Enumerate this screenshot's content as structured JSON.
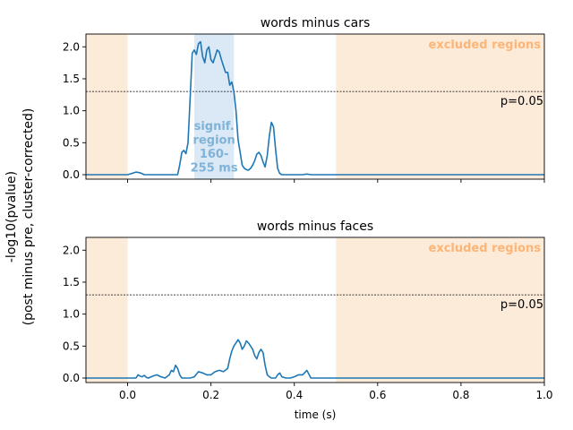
{
  "figure": {
    "ylabel_line1": "-log10(pvalue)",
    "ylabel_line2": "(post minus pre, cluster-corrected)",
    "xlabel": "time (s)"
  },
  "chart_data": [
    {
      "type": "line",
      "title": "words minus cars",
      "xlim": [
        -0.1,
        1.0
      ],
      "ylim": [
        -0.07,
        2.2
      ],
      "yticks": [
        "0.0",
        "0.5",
        "1.0",
        "1.5",
        "2.0"
      ],
      "ytick_values": [
        0.0,
        0.5,
        1.0,
        1.5,
        2.0
      ],
      "xticks": [
        0.0,
        0.2,
        0.4,
        0.6,
        0.8,
        1.0
      ],
      "show_xtick_labels": false,
      "threshold": {
        "value": 1.301,
        "label": "p=0.05"
      },
      "excluded_regions": [
        [
          -0.1,
          0.0
        ],
        [
          0.5,
          1.0
        ]
      ],
      "excluded_label": "excluded regions",
      "significant_region": {
        "range": [
          0.16,
          0.255
        ],
        "label_lines": [
          "signif.",
          "region",
          "160-",
          "255 ms"
        ]
      },
      "colors": {
        "line": "#1f77b4",
        "excluded": "#fdebd9",
        "excluded_text": "#fdb577",
        "signif": "#dbe9f6",
        "signif_text": "#7fb3d8"
      },
      "series": [
        {
          "x": [
            -0.1,
            0.0,
            0.01,
            0.02,
            0.03,
            0.04,
            0.05,
            0.1,
            0.12,
            0.125,
            0.13,
            0.135,
            0.14,
            0.145,
            0.15,
            0.155,
            0.16,
            0.165,
            0.17,
            0.175,
            0.18,
            0.185,
            0.19,
            0.195,
            0.2,
            0.205,
            0.21,
            0.215,
            0.22,
            0.225,
            0.23,
            0.235,
            0.24,
            0.245,
            0.25,
            0.255,
            0.26,
            0.265,
            0.27,
            0.275,
            0.28,
            0.285,
            0.29,
            0.295,
            0.3,
            0.305,
            0.31,
            0.315,
            0.32,
            0.325,
            0.33,
            0.335,
            0.34,
            0.345,
            0.35,
            0.355,
            0.36,
            0.365,
            0.37,
            0.38,
            0.4,
            0.42,
            0.43,
            0.44,
            0.5,
            1.0
          ],
          "y": [
            0.0,
            0.0,
            0.02,
            0.04,
            0.03,
            0.0,
            0.0,
            0.0,
            0.0,
            0.15,
            0.35,
            0.38,
            0.33,
            0.5,
            1.2,
            1.9,
            1.95,
            1.88,
            2.05,
            2.08,
            1.85,
            1.75,
            1.95,
            2.0,
            1.8,
            1.75,
            1.85,
            1.95,
            1.92,
            1.8,
            1.7,
            1.6,
            1.6,
            1.4,
            1.45,
            1.3,
            1.0,
            0.55,
            0.35,
            0.15,
            0.1,
            0.08,
            0.07,
            0.1,
            0.15,
            0.22,
            0.32,
            0.35,
            0.3,
            0.2,
            0.12,
            0.3,
            0.6,
            0.82,
            0.75,
            0.4,
            0.1,
            0.02,
            0.0,
            0.0,
            0.0,
            0.0,
            0.01,
            0.0,
            0.0,
            0.0
          ]
        }
      ]
    },
    {
      "type": "line",
      "title": "words minus faces",
      "xlim": [
        -0.1,
        1.0
      ],
      "ylim": [
        -0.07,
        2.2
      ],
      "yticks": [
        "0.0",
        "0.5",
        "1.0",
        "1.5",
        "2.0"
      ],
      "ytick_values": [
        0.0,
        0.5,
        1.0,
        1.5,
        2.0
      ],
      "xticks": [
        0.0,
        0.2,
        0.4,
        0.6,
        0.8,
        1.0
      ],
      "xtick_labels": [
        "0.0",
        "0.2",
        "0.4",
        "0.6",
        "0.8",
        "1.0"
      ],
      "show_xtick_labels": true,
      "threshold": {
        "value": 1.301,
        "label": "p=0.05"
      },
      "excluded_regions": [
        [
          -0.1,
          0.0
        ],
        [
          0.5,
          1.0
        ]
      ],
      "excluded_label": "excluded regions",
      "colors": {
        "line": "#1f77b4",
        "excluded": "#fdebd9",
        "excluded_text": "#fdb577"
      },
      "series": [
        {
          "x": [
            -0.1,
            0.0,
            0.02,
            0.025,
            0.03,
            0.035,
            0.04,
            0.045,
            0.05,
            0.06,
            0.07,
            0.08,
            0.09,
            0.1,
            0.105,
            0.11,
            0.115,
            0.12,
            0.125,
            0.13,
            0.14,
            0.15,
            0.16,
            0.17,
            0.18,
            0.19,
            0.2,
            0.21,
            0.22,
            0.23,
            0.24,
            0.245,
            0.25,
            0.255,
            0.26,
            0.265,
            0.27,
            0.275,
            0.28,
            0.285,
            0.29,
            0.295,
            0.3,
            0.305,
            0.31,
            0.315,
            0.32,
            0.325,
            0.33,
            0.335,
            0.34,
            0.345,
            0.35,
            0.355,
            0.36,
            0.365,
            0.37,
            0.38,
            0.39,
            0.4,
            0.41,
            0.42,
            0.43,
            0.44,
            0.5,
            1.0
          ],
          "y": [
            0.0,
            0.0,
            0.0,
            0.05,
            0.03,
            0.02,
            0.04,
            0.01,
            0.0,
            0.03,
            0.05,
            0.02,
            0.0,
            0.05,
            0.12,
            0.1,
            0.2,
            0.15,
            0.05,
            0.0,
            0.0,
            0.0,
            0.02,
            0.1,
            0.08,
            0.05,
            0.05,
            0.1,
            0.12,
            0.1,
            0.15,
            0.3,
            0.42,
            0.5,
            0.55,
            0.6,
            0.55,
            0.45,
            0.5,
            0.58,
            0.55,
            0.5,
            0.45,
            0.35,
            0.3,
            0.4,
            0.45,
            0.4,
            0.2,
            0.05,
            0.02,
            0.0,
            0.0,
            0.0,
            0.05,
            0.08,
            0.02,
            0.0,
            0.0,
            0.02,
            0.05,
            0.05,
            0.12,
            0.0,
            0.0,
            0.0
          ]
        }
      ]
    }
  ]
}
